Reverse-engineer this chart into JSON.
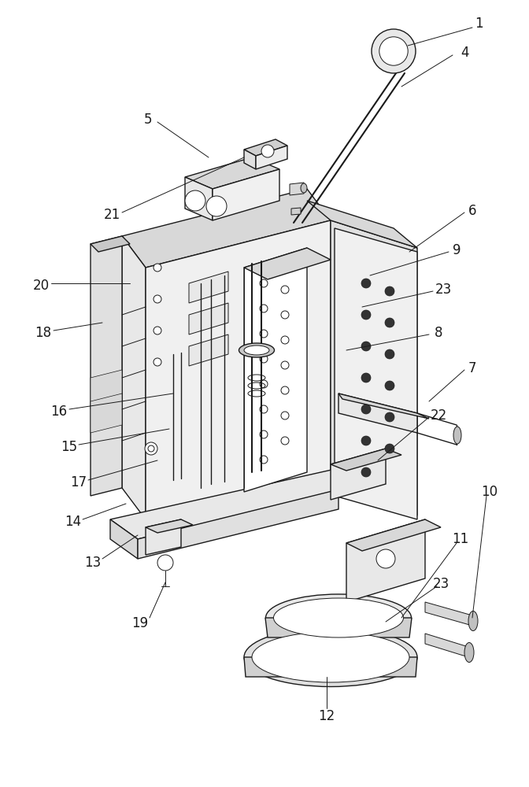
{
  "bg_color": "#ffffff",
  "lc": "#1a1a1a",
  "lw": 1.0,
  "tlw": 0.7,
  "flw": 0.5,
  "fig_w": 6.72,
  "fig_h": 10.0,
  "dpi": 100
}
